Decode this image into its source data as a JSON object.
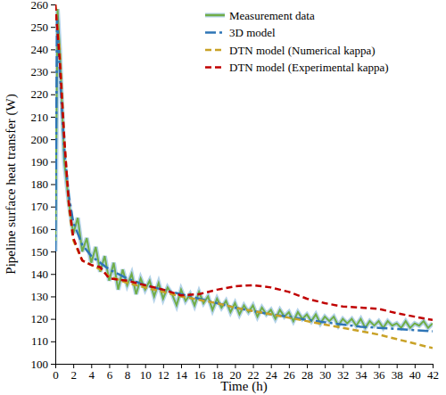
{
  "chart_data": {
    "type": "line",
    "x_label": "Time (h)",
    "y_label": "Pipeline surface heat transfer (W)",
    "xlim": [
      0,
      42
    ],
    "xticks": [
      0,
      2,
      4,
      6,
      8,
      10,
      12,
      14,
      16,
      18,
      20,
      22,
      24,
      26,
      28,
      30,
      32,
      34,
      36,
      38,
      40,
      42
    ],
    "ylim": [
      100,
      260
    ],
    "yticks": [
      100,
      110,
      120,
      130,
      140,
      150,
      160,
      170,
      180,
      190,
      200,
      210,
      220,
      230,
      240,
      250,
      260
    ],
    "grid": false,
    "legend": "top-right",
    "series": [
      {
        "name": "Measurement data",
        "color": "#70ad47",
        "line_style": "solid",
        "x": [
          0,
          0.25,
          0.5,
          1,
          1.5,
          2,
          2.5,
          3,
          3.5,
          4,
          4.5,
          5,
          5.5,
          6,
          6.5,
          7,
          7.5,
          8,
          8.5,
          9,
          9.5,
          10,
          10.5,
          11,
          11.5,
          12,
          12.5,
          13,
          13.5,
          14,
          14.5,
          15,
          15.5,
          16,
          16.5,
          17,
          17.5,
          18,
          18.5,
          19,
          19.5,
          20,
          20.5,
          21,
          21.5,
          22,
          22.5,
          23,
          23.5,
          24,
          24.5,
          25,
          25.5,
          26,
          26.5,
          27,
          27.5,
          28,
          28.5,
          29,
          29.5,
          30,
          30.5,
          31,
          31.5,
          32,
          32.5,
          33,
          33.5,
          34,
          34.5,
          35,
          35.5,
          36,
          36.5,
          37,
          37.5,
          38,
          38.5,
          39,
          39.5,
          40,
          40.5,
          41,
          41.5,
          42
        ],
        "values": [
          150,
          258,
          240,
          190,
          172,
          158,
          165,
          150,
          156,
          145,
          152,
          141,
          148,
          137,
          145,
          133,
          142,
          135,
          140,
          131,
          138,
          133,
          137,
          130,
          136,
          129,
          134,
          131,
          126,
          133,
          128,
          131,
          126,
          132,
          127,
          130,
          124,
          129,
          125,
          128,
          123,
          127,
          122,
          126,
          123,
          126,
          121,
          125,
          122,
          124,
          120,
          124,
          121,
          123,
          119,
          123,
          120,
          122,
          119,
          122,
          118,
          121,
          119,
          121,
          117,
          120,
          118,
          120,
          117,
          120,
          116,
          119,
          117,
          119,
          116,
          119,
          117,
          118,
          116,
          119,
          116,
          118,
          117,
          119,
          116,
          118
        ]
      },
      {
        "name": "3D model",
        "color": "#2e75b6",
        "line_style": "dashdot",
        "x": [
          0,
          0.2,
          0.5,
          1,
          1.5,
          2,
          3,
          4,
          5,
          6,
          8,
          10,
          12,
          14,
          16,
          18,
          20,
          22,
          24,
          26,
          28,
          30,
          32,
          34,
          36,
          38,
          40,
          42
        ],
        "values": [
          150,
          255,
          230,
          195,
          175,
          163,
          153,
          148,
          145,
          142,
          138,
          135,
          133,
          131,
          129,
          127,
          125,
          123.5,
          122,
          121,
          119.5,
          118.5,
          117.5,
          116.5,
          116,
          115.5,
          115,
          114.5
        ]
      },
      {
        "name": "DTN model (Numerical kappa)",
        "color": "#c9a227",
        "line_style": "dashed",
        "x": [
          0,
          0.5,
          1,
          1.5,
          2,
          3,
          4,
          5,
          6,
          8,
          10,
          12,
          14,
          16,
          18,
          20,
          22,
          24,
          26,
          28,
          30,
          32,
          34,
          36,
          38,
          40,
          42
        ],
        "values": [
          260,
          240,
          200,
          170,
          155,
          146,
          144,
          142,
          139,
          136,
          134,
          132,
          130,
          128.5,
          127,
          125,
          123.5,
          122,
          120.5,
          119,
          117.5,
          116,
          114.5,
          113,
          111,
          109,
          107
        ]
      },
      {
        "name": "DTN model (Experimental kappa)",
        "color": "#c00000",
        "line_style": "dashed",
        "x": [
          0,
          0.5,
          1,
          1.5,
          2,
          3,
          4,
          5,
          6,
          8,
          10,
          12,
          14,
          16,
          18,
          20,
          22,
          24,
          26,
          28,
          30,
          32,
          34,
          36,
          38,
          40,
          42
        ],
        "values": [
          260,
          235,
          200,
          172,
          156,
          146,
          144,
          143,
          138,
          137,
          135,
          133,
          130.5,
          131,
          133,
          134.5,
          135,
          134,
          132,
          129,
          127,
          125.5,
          125,
          124.5,
          122.5,
          121,
          119.5
        ]
      }
    ]
  }
}
